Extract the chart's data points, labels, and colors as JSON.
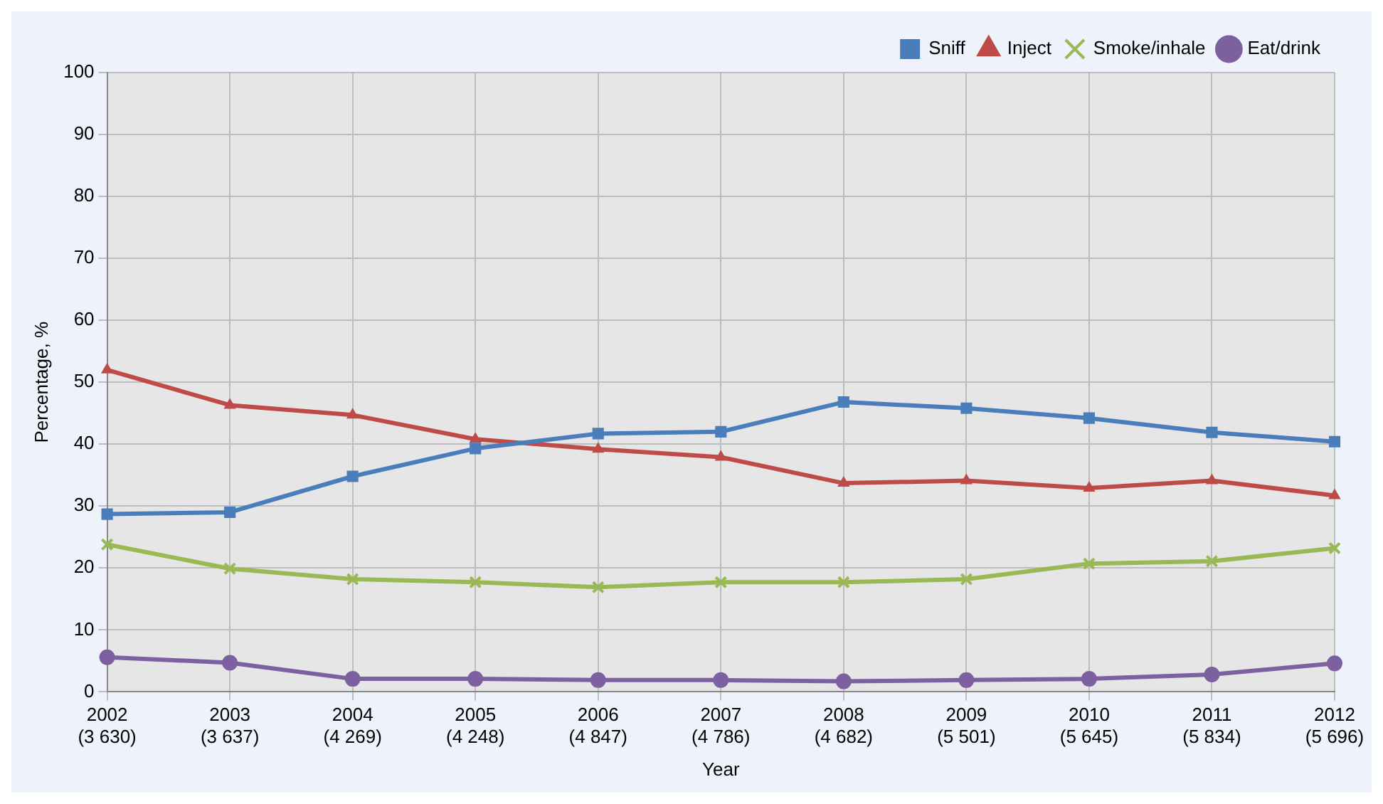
{
  "chart_data": {
    "type": "line",
    "xlabel": "Year",
    "ylabel": "Percentage, %",
    "categories": [
      "2002\n(3 630)",
      "2003\n(3 637)",
      "2004\n(4 269)",
      "2005\n(4 248)",
      "2006\n(4 847)",
      "2007\n(4 786)",
      "2008\n(4 682)",
      "2009\n(5 501)",
      "2010\n(5 645)",
      "2011\n(5 834)",
      "2012\n(5 696)"
    ],
    "series": [
      {
        "name": "Sniff",
        "color": "#4a7ebb",
        "marker": "square",
        "values": [
          28.7,
          29,
          34.8,
          39.3,
          41.7,
          42,
          46.8,
          45.8,
          44.2,
          41.9,
          40.4
        ]
      },
      {
        "name": "Inject",
        "color": "#be4b48",
        "marker": "triangle",
        "values": [
          52,
          46.3,
          44.7,
          40.8,
          39.2,
          37.9,
          33.7,
          34.1,
          32.9,
          34.1,
          31.7
        ]
      },
      {
        "name": "Smoke/inhale",
        "color": "#98b954",
        "marker": "cross",
        "values": [
          23.8,
          19.9,
          18.2,
          17.7,
          16.9,
          17.7,
          17.7,
          18.2,
          20.7,
          21.1,
          23.2
        ]
      },
      {
        "name": "Eat/drink",
        "color": "#7d60a0",
        "marker": "circle",
        "values": [
          5.6,
          4.7,
          2.1,
          2.1,
          1.9,
          1.9,
          1.7,
          1.9,
          2.1,
          2.8,
          4.6
        ]
      }
    ],
    "ylim": [
      0,
      100
    ],
    "yticks": [
      0,
      10,
      20,
      30,
      40,
      50,
      60,
      70,
      80,
      90,
      100
    ],
    "grid": true,
    "legend": "top right"
  }
}
